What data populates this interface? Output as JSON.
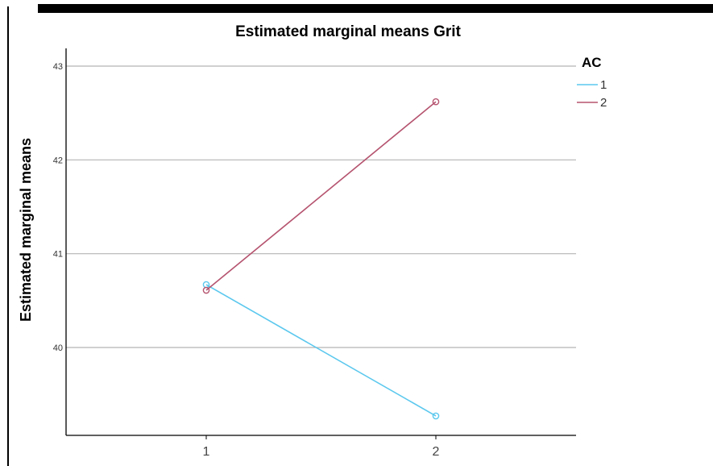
{
  "chart_data": {
    "type": "line",
    "title": "Estimated marginal means Grit",
    "xlabel": "",
    "ylabel": "Estimated marginal means",
    "categories": [
      "1",
      "2"
    ],
    "yticks": [
      "40",
      "41",
      "42",
      "43"
    ],
    "ylim": [
      39.0,
      43.0
    ],
    "grid": true,
    "legend": {
      "title": "AC",
      "placement": "top-right"
    },
    "series": [
      {
        "name": "1",
        "values": [
          40.67,
          39.27
        ],
        "color": "#5bc8ee"
      },
      {
        "name": "2",
        "values": [
          40.61,
          42.62
        ],
        "color": "#b5536f"
      }
    ]
  }
}
